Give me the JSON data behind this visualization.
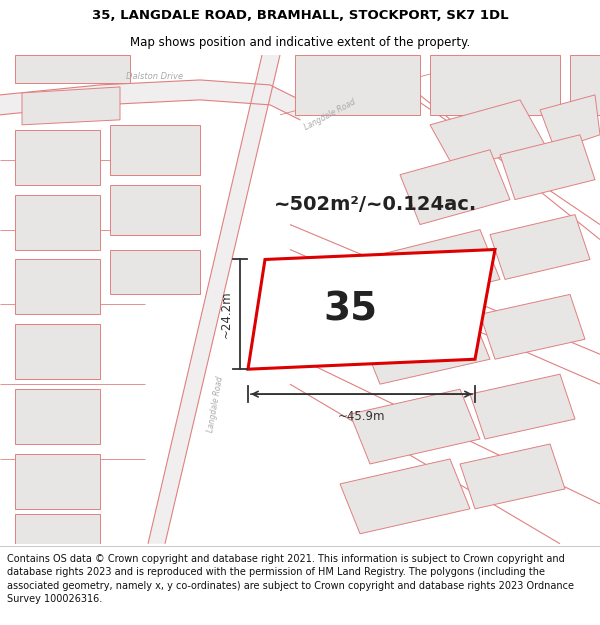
{
  "title_line1": "35, LANGDALE ROAD, BRAMHALL, STOCKPORT, SK7 1DL",
  "title_line2": "Map shows position and indicative extent of the property.",
  "footer_text": "Contains OS data © Crown copyright and database right 2021. This information is subject to Crown copyright and database rights 2023 and is reproduced with the permission of HM Land Registry. The polygons (including the associated geometry, namely x, y co-ordinates) are subject to Crown copyright and database rights 2023 Ordnance Survey 100026316.",
  "area_label": "~502m²/~0.124ac.",
  "plot_number": "35",
  "dim_width": "~45.9m",
  "dim_height": "~24.2m",
  "map_bg": "#ffffff",
  "road_fill": "#f0eeee",
  "bld_fill": "#e8e5e5",
  "bld_edge": "#e08080",
  "plot_fill": "#ffffff",
  "plot_edge": "#dd0000",
  "road_edge": "#e08080",
  "text_road": "#aaaaaa",
  "dim_color": "#333333",
  "title_fontsize": 9.5,
  "subtitle_fontsize": 8.5,
  "footer_fontsize": 7.0,
  "area_fontsize": 14,
  "number_fontsize": 28
}
